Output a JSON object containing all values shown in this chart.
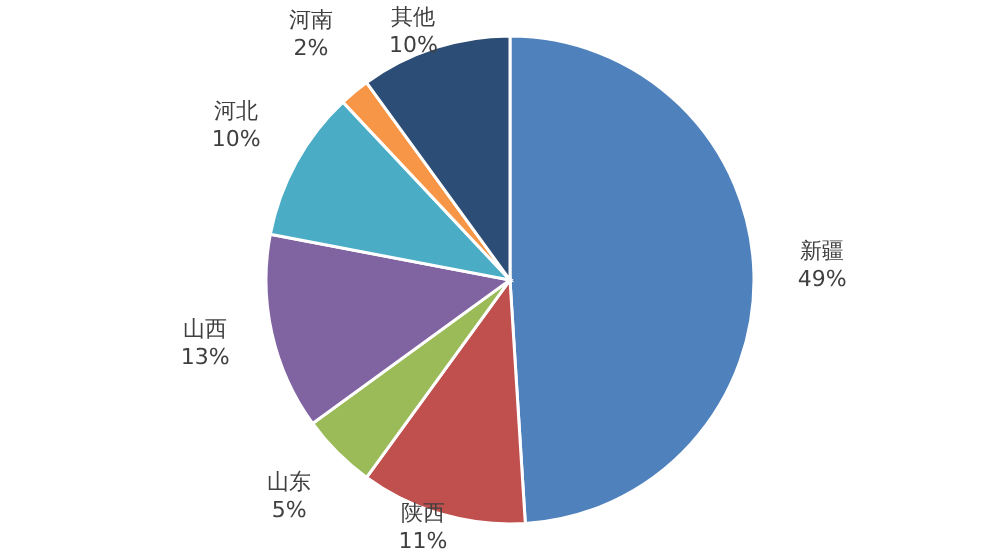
{
  "chart_data": {
    "type": "pie",
    "categories": [
      "新疆",
      "陕西",
      "山东",
      "山西",
      "河北",
      "河南",
      "其他"
    ],
    "values": [
      49,
      11,
      5,
      13,
      10,
      2,
      10
    ],
    "value_labels": [
      "49%",
      "11%",
      "5%",
      "13%",
      "10%",
      "2%",
      "10%"
    ],
    "colors": [
      "#4f81bd",
      "#c0504d",
      "#9bbb59",
      "#8064a2",
      "#4bacc6",
      "#f79646",
      "#2c4d75"
    ]
  }
}
